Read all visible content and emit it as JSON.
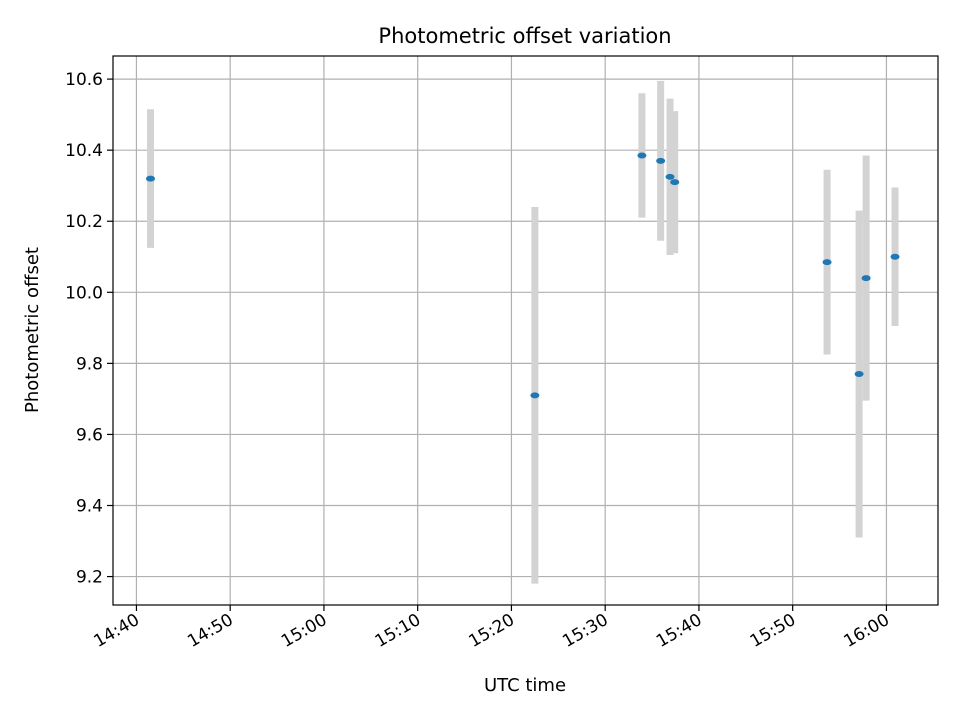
{
  "chart_data": {
    "type": "scatter",
    "title": "Photometric offset variation",
    "xlabel": "UTC time",
    "ylabel": "Photometric offset",
    "x_ticks": [
      "14:40",
      "14:50",
      "15:00",
      "15:10",
      "15:20",
      "15:30",
      "15:40",
      "15:50",
      "16:00"
    ],
    "y_ticks": [
      "9.2",
      "9.4",
      "9.6",
      "9.8",
      "10.0",
      "10.2",
      "10.4",
      "10.6"
    ],
    "xlim": [
      "14:37:30",
      "16:05:30"
    ],
    "ylim": [
      9.12,
      10.665
    ],
    "grid": true,
    "legend": "none",
    "colors": {
      "points": "#1f77b4",
      "error_bars": "#d3d3d3",
      "grid": "#b0b0b0"
    },
    "series": [
      {
        "points": [
          {
            "x": "14:41:30",
            "y": 10.32,
            "err": 0.195
          },
          {
            "x": "15:22:30",
            "y": 9.71,
            "err": 0.53
          },
          {
            "x": "15:33:55",
            "y": 10.385,
            "err": 0.175
          },
          {
            "x": "15:35:55",
            "y": 10.37,
            "err": 0.225
          },
          {
            "x": "15:36:55",
            "y": 10.325,
            "err": 0.22
          },
          {
            "x": "15:37:25",
            "y": 10.31,
            "err": 0.2
          },
          {
            "x": "15:53:40",
            "y": 10.085,
            "err": 0.26
          },
          {
            "x": "15:57:05",
            "y": 9.77,
            "err": 0.46
          },
          {
            "x": "15:57:50",
            "y": 10.04,
            "err": 0.345
          },
          {
            "x": "16:00:55",
            "y": 10.1,
            "err": 0.195
          }
        ]
      }
    ]
  }
}
